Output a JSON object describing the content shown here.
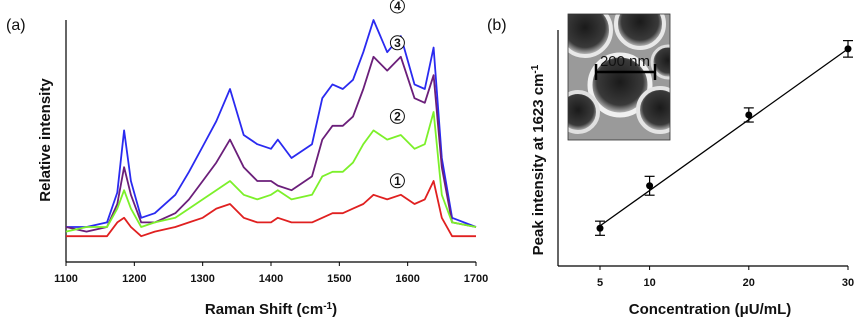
{
  "chart_data": [
    {
      "panel": "(a)",
      "type": "line",
      "xlabel_main": "Raman Shift (cm",
      "xlabel_sup": "-1",
      "xlabel_close": ")",
      "ylabel": "Relative intensity",
      "xlim": [
        1100,
        1700
      ],
      "x_ticks": [
        "1100",
        "1200",
        "1300",
        "1400",
        "1500",
        "1600",
        "1700"
      ],
      "series": [
        {
          "marker": "4",
          "color": "#2a2af0",
          "points": [
            [
              1100,
              0.1
            ],
            [
              1130,
              0.1
            ],
            [
              1160,
              0.12
            ],
            [
              1175,
              0.25
            ],
            [
              1185,
              0.52
            ],
            [
              1195,
              0.3
            ],
            [
              1210,
              0.14
            ],
            [
              1230,
              0.16
            ],
            [
              1260,
              0.24
            ],
            [
              1280,
              0.34
            ],
            [
              1300,
              0.45
            ],
            [
              1320,
              0.56
            ],
            [
              1340,
              0.7
            ],
            [
              1360,
              0.5
            ],
            [
              1380,
              0.46
            ],
            [
              1400,
              0.44
            ],
            [
              1410,
              0.48
            ],
            [
              1430,
              0.4
            ],
            [
              1460,
              0.46
            ],
            [
              1475,
              0.66
            ],
            [
              1490,
              0.72
            ],
            [
              1505,
              0.7
            ],
            [
              1520,
              0.74
            ],
            [
              1535,
              0.86
            ],
            [
              1550,
              1.0
            ],
            [
              1570,
              0.86
            ],
            [
              1590,
              0.93
            ],
            [
              1610,
              0.72
            ],
            [
              1625,
              0.7
            ],
            [
              1638,
              0.88
            ],
            [
              1650,
              0.4
            ],
            [
              1665,
              0.14
            ],
            [
              1700,
              0.1
            ]
          ]
        },
        {
          "marker": "3",
          "color": "#6b1f7a",
          "points": [
            [
              1100,
              0.1
            ],
            [
              1130,
              0.08
            ],
            [
              1160,
              0.1
            ],
            [
              1175,
              0.2
            ],
            [
              1185,
              0.36
            ],
            [
              1195,
              0.24
            ],
            [
              1210,
              0.12
            ],
            [
              1230,
              0.12
            ],
            [
              1260,
              0.16
            ],
            [
              1280,
              0.22
            ],
            [
              1300,
              0.3
            ],
            [
              1320,
              0.38
            ],
            [
              1340,
              0.48
            ],
            [
              1360,
              0.36
            ],
            [
              1380,
              0.3
            ],
            [
              1400,
              0.3
            ],
            [
              1410,
              0.28
            ],
            [
              1430,
              0.26
            ],
            [
              1460,
              0.32
            ],
            [
              1475,
              0.48
            ],
            [
              1490,
              0.54
            ],
            [
              1505,
              0.54
            ],
            [
              1520,
              0.58
            ],
            [
              1535,
              0.7
            ],
            [
              1550,
              0.84
            ],
            [
              1570,
              0.78
            ],
            [
              1590,
              0.84
            ],
            [
              1610,
              0.66
            ],
            [
              1625,
              0.64
            ],
            [
              1638,
              0.76
            ],
            [
              1650,
              0.36
            ],
            [
              1665,
              0.12
            ],
            [
              1700,
              0.1
            ]
          ]
        },
        {
          "marker": "2",
          "color": "#7cf02a",
          "points": [
            [
              1100,
              0.08
            ],
            [
              1130,
              0.1
            ],
            [
              1160,
              0.1
            ],
            [
              1175,
              0.18
            ],
            [
              1185,
              0.26
            ],
            [
              1195,
              0.18
            ],
            [
              1210,
              0.1
            ],
            [
              1230,
              0.12
            ],
            [
              1260,
              0.14
            ],
            [
              1280,
              0.18
            ],
            [
              1300,
              0.22
            ],
            [
              1320,
              0.26
            ],
            [
              1340,
              0.3
            ],
            [
              1360,
              0.24
            ],
            [
              1380,
              0.22
            ],
            [
              1400,
              0.24
            ],
            [
              1410,
              0.26
            ],
            [
              1430,
              0.22
            ],
            [
              1460,
              0.24
            ],
            [
              1475,
              0.32
            ],
            [
              1490,
              0.34
            ],
            [
              1505,
              0.34
            ],
            [
              1520,
              0.38
            ],
            [
              1535,
              0.46
            ],
            [
              1550,
              0.52
            ],
            [
              1570,
              0.48
            ],
            [
              1590,
              0.5
            ],
            [
              1610,
              0.44
            ],
            [
              1625,
              0.46
            ],
            [
              1638,
              0.6
            ],
            [
              1650,
              0.24
            ],
            [
              1665,
              0.12
            ],
            [
              1700,
              0.1
            ]
          ]
        },
        {
          "marker": "1",
          "color": "#e02020",
          "points": [
            [
              1100,
              0.06
            ],
            [
              1130,
              0.06
            ],
            [
              1160,
              0.06
            ],
            [
              1175,
              0.12
            ],
            [
              1185,
              0.14
            ],
            [
              1195,
              0.1
            ],
            [
              1210,
              0.06
            ],
            [
              1230,
              0.08
            ],
            [
              1260,
              0.1
            ],
            [
              1280,
              0.12
            ],
            [
              1300,
              0.14
            ],
            [
              1320,
              0.18
            ],
            [
              1340,
              0.2
            ],
            [
              1360,
              0.14
            ],
            [
              1380,
              0.12
            ],
            [
              1400,
              0.12
            ],
            [
              1410,
              0.14
            ],
            [
              1430,
              0.12
            ],
            [
              1460,
              0.12
            ],
            [
              1475,
              0.14
            ],
            [
              1490,
              0.16
            ],
            [
              1505,
              0.16
            ],
            [
              1520,
              0.18
            ],
            [
              1535,
              0.2
            ],
            [
              1550,
              0.24
            ],
            [
              1570,
              0.22
            ],
            [
              1590,
              0.24
            ],
            [
              1610,
              0.2
            ],
            [
              1625,
              0.22
            ],
            [
              1638,
              0.3
            ],
            [
              1650,
              0.14
            ],
            [
              1665,
              0.06
            ],
            [
              1700,
              0.06
            ]
          ]
        }
      ]
    },
    {
      "panel": "(b)",
      "type": "scatter",
      "xlabel": "Concentration (μU/mL)",
      "ylabel_main": "Peak intensity at 1623 cm",
      "ylabel_sup": "-1",
      "x_ticks": [
        "5",
        "10",
        "20",
        "30"
      ],
      "xlim": [
        0,
        30
      ],
      "points": [
        {
          "x": 5,
          "y": 0.16,
          "err": 0.03
        },
        {
          "x": 10,
          "y": 0.34,
          "err": 0.04
        },
        {
          "x": 20,
          "y": 0.64,
          "err": 0.03
        },
        {
          "x": 30,
          "y": 0.92,
          "err": 0.035
        }
      ],
      "fit": [
        [
          5,
          0.17
        ],
        [
          30,
          0.92
        ]
      ],
      "inset_scale_label": "200 nm"
    }
  ]
}
